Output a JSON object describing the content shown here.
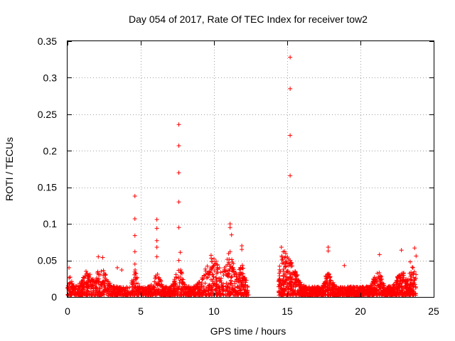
{
  "chart_data": {
    "type": "scatter",
    "title": "Day 054 of 2017, Rate Of TEC Index for receiver tow2",
    "xlabel": "GPS time / hours",
    "ylabel": "ROTI / TECUs",
    "xlim": [
      0,
      25
    ],
    "ylim": [
      0,
      0.35
    ],
    "xticks": [
      0,
      5,
      10,
      15,
      20,
      25
    ],
    "xtick_labels": [
      "0",
      "5",
      "10",
      "15",
      "20",
      "25"
    ],
    "yticks": [
      0,
      0.05,
      0.1,
      0.15,
      0.2,
      0.25,
      0.3,
      0.35
    ],
    "ytick_labels": [
      "0",
      "0.05",
      "0.1",
      "0.15",
      "0.2",
      "0.25",
      "0.3",
      "0.35"
    ],
    "grid": true,
    "marker": "+",
    "color": "#ff0000",
    "notes": "Dense ROTI cloud below ~0.05 from 0 to ~12.4 h and ~14.4 to ~23.8 h, with a data gap between ~12.4 and ~14.4 h; listed points are the visible outliers.",
    "series": [
      {
        "name": "ROTI",
        "points": [
          [
            4.6,
            0.138
          ],
          [
            4.6,
            0.107
          ],
          [
            4.6,
            0.084
          ],
          [
            4.6,
            0.062
          ],
          [
            4.6,
            0.045
          ],
          [
            6.1,
            0.106
          ],
          [
            6.1,
            0.094
          ],
          [
            6.1,
            0.077
          ],
          [
            6.1,
            0.068
          ],
          [
            6.1,
            0.055
          ],
          [
            7.6,
            0.236
          ],
          [
            7.6,
            0.207
          ],
          [
            7.6,
            0.17
          ],
          [
            7.6,
            0.13
          ],
          [
            7.6,
            0.095
          ],
          [
            7.7,
            0.061
          ],
          [
            7.6,
            0.05
          ],
          [
            11.1,
            0.1
          ],
          [
            11.1,
            0.095
          ],
          [
            11.2,
            0.085
          ],
          [
            11.1,
            0.062
          ],
          [
            11.9,
            0.07
          ],
          [
            11.9,
            0.065
          ],
          [
            15.2,
            0.328
          ],
          [
            15.2,
            0.285
          ],
          [
            15.2,
            0.221
          ],
          [
            15.2,
            0.166
          ],
          [
            14.6,
            0.068
          ],
          [
            15.2,
            0.05
          ],
          [
            17.8,
            0.068
          ],
          [
            17.8,
            0.063
          ],
          [
            18.9,
            0.043
          ],
          [
            21.3,
            0.058
          ],
          [
            22.8,
            0.064
          ],
          [
            23.7,
            0.067
          ],
          [
            23.8,
            0.056
          ],
          [
            2.1,
            0.055
          ],
          [
            2.4,
            0.054
          ],
          [
            1.3,
            0.032
          ],
          [
            3.4,
            0.04
          ],
          [
            3.7,
            0.037
          ],
          [
            0.1,
            0.04
          ],
          [
            9.8,
            0.057
          ],
          [
            10.0,
            0.052
          ],
          [
            23.4,
            0.048
          ]
        ]
      }
    ]
  }
}
